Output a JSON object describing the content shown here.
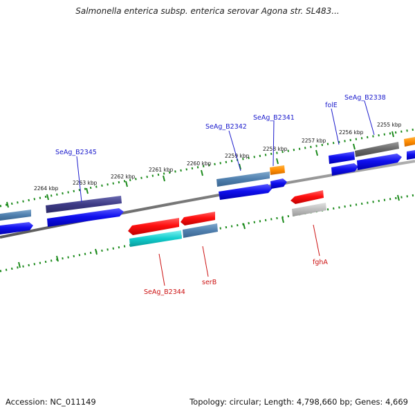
{
  "map": {
    "title": "Salmonella enterica subsp. enterica serovar Agona str. SL483...",
    "accession": "Accession: NC_011149",
    "genome_info": "Topology: circular; Length: 4,798,660 bp; Genes: 4,669"
  },
  "colors": {
    "forward_label": "#1a1acc",
    "reverse_label": "#cc1111",
    "tick_green": "#1a8a1a",
    "backbone": "#888888"
  },
  "scale_ticks": [
    "2255 kbp",
    "2256 kbp",
    "2257 kbp",
    "2258 kbp",
    "2259 kbp",
    "2260 kbp",
    "2261 kbp",
    "2262 kbp",
    "2263 kbp",
    "2264 kbp"
  ],
  "gene_labels": {
    "forward": [
      "SeAg_B2345",
      "SeAg_B2342",
      "SeAg_B2341",
      "folE",
      "SeAg_B2338"
    ],
    "reverse": [
      "SeAg_B2344",
      "serB",
      "fghA"
    ]
  }
}
